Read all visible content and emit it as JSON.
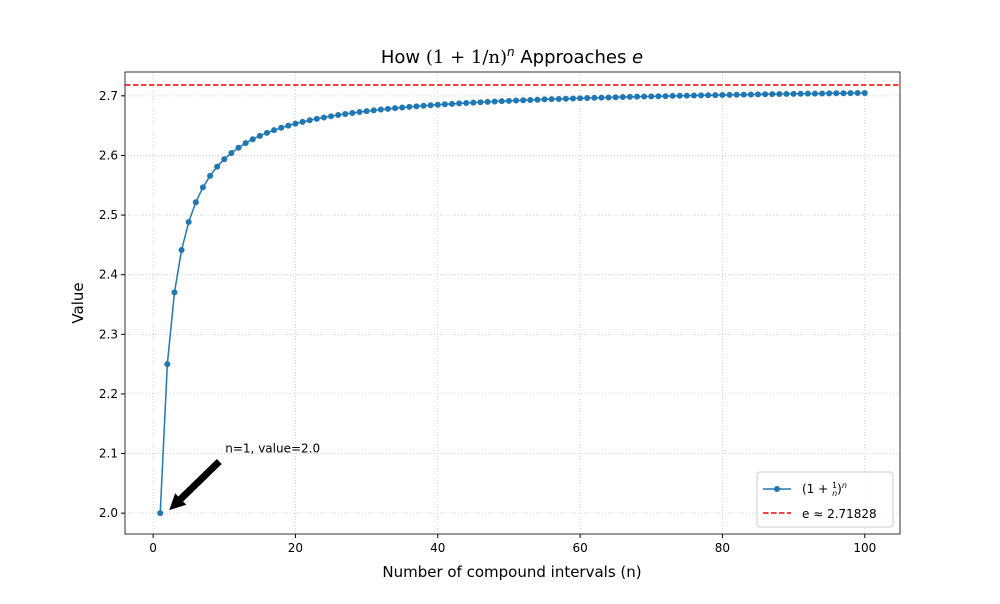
{
  "chart_data": {
    "type": "line",
    "title": {
      "prefix": "How ",
      "math": "(1 + 1/n)",
      "sup": "n",
      "suffix": " Approaches ",
      "e": "e"
    },
    "xlabel": "Number of compound intervals (n)",
    "ylabel": "Value",
    "xlim": [
      -3.95,
      104.95
    ],
    "ylim": [
      1.965,
      2.74
    ],
    "xticks": [
      0,
      20,
      40,
      60,
      80,
      100
    ],
    "yticks": [
      2.0,
      2.1,
      2.2,
      2.3,
      2.4,
      2.5,
      2.6,
      2.7
    ],
    "grid": true,
    "legend_placement": "lower-right",
    "series": [
      {
        "name": "(1 + 1/n)^n",
        "legend_parts": {
          "open": "(1 + ",
          "num": "1",
          "den": "n",
          "close": ")",
          "sup": "n"
        },
        "color": "#1f77b4",
        "marker": "circle",
        "x": [
          1,
          2,
          3,
          4,
          5,
          6,
          7,
          8,
          9,
          10,
          11,
          12,
          13,
          14,
          15,
          16,
          17,
          18,
          19,
          20,
          21,
          22,
          23,
          24,
          25,
          26,
          27,
          28,
          29,
          30,
          31,
          32,
          33,
          34,
          35,
          36,
          37,
          38,
          39,
          40,
          41,
          42,
          43,
          44,
          45,
          46,
          47,
          48,
          49,
          50,
          51,
          52,
          53,
          54,
          55,
          56,
          57,
          58,
          59,
          60,
          61,
          62,
          63,
          64,
          65,
          66,
          67,
          68,
          69,
          70,
          71,
          72,
          73,
          74,
          75,
          76,
          77,
          78,
          79,
          80,
          81,
          82,
          83,
          84,
          85,
          86,
          87,
          88,
          89,
          90,
          91,
          92,
          93,
          94,
          95,
          96,
          97,
          98,
          99,
          100
        ],
        "y": [
          2.0,
          2.25,
          2.3704,
          2.4414,
          2.4883,
          2.5216,
          2.5465,
          2.5658,
          2.5812,
          2.5937,
          2.6042,
          2.613,
          2.6206,
          2.6272,
          2.6329,
          2.6379,
          2.6424,
          2.6464,
          2.65,
          2.6533,
          2.6563,
          2.659,
          2.6614,
          2.6637,
          2.6658,
          2.6678,
          2.6696,
          2.6713,
          2.6728,
          2.6743,
          2.6757,
          2.677,
          2.6782,
          2.6794,
          2.6804,
          2.6815,
          2.6824,
          2.6834,
          2.6842,
          2.6851,
          2.6859,
          2.6866,
          2.6873,
          2.688,
          2.6887,
          2.6893,
          2.6899,
          2.6905,
          2.6911,
          2.6916,
          2.6921,
          2.6926,
          2.6931,
          2.6935,
          2.694,
          2.6944,
          2.6948,
          2.6952,
          2.6956,
          2.696,
          2.6963,
          2.6967,
          2.697,
          2.6973,
          2.6977,
          2.698,
          2.6983,
          2.6986,
          2.6988,
          2.6991,
          2.6994,
          2.6996,
          2.6999,
          2.7001,
          2.7004,
          2.7006,
          2.7008,
          2.7011,
          2.7013,
          2.7015,
          2.7017,
          2.7019,
          2.7021,
          2.7023,
          2.7025,
          2.7026,
          2.7028,
          2.703,
          2.7032,
          2.7033,
          2.7035,
          2.7037,
          2.7038,
          2.704,
          2.7041,
          2.7043,
          2.7044,
          2.7045,
          2.7047,
          2.7048
        ]
      },
      {
        "name": "e ≈ 2.71828",
        "color": "#ff0000",
        "style": "dashed",
        "hline": 2.71828
      }
    ],
    "annotation": {
      "text": "n=1, value=2.0",
      "point": [
        1,
        2.0
      ],
      "text_pos": [
        10,
        2.1
      ],
      "arrow_color": "#000000"
    }
  }
}
